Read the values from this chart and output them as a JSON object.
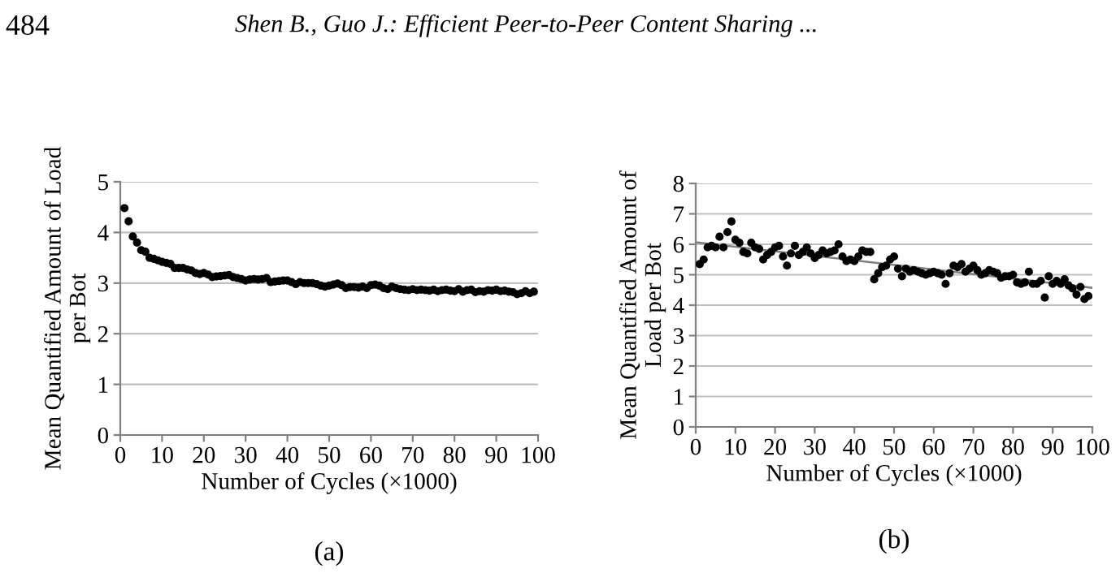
{
  "chart_data": [
    {
      "type": "scatter",
      "xlabel": "Number of Cycles (×1000)",
      "ylabel": "Mean Quantified Amount of Load\nper Bot",
      "annotations": [
        "484",
        "Shen B., Guo J.: Efficient Peer-to-Peer Content Sharing ...",
        "(a)"
      ],
      "xlim": [
        0,
        100
      ],
      "ylim": [
        0,
        5
      ],
      "xticks": [
        0,
        10,
        20,
        30,
        40,
        50,
        60,
        70,
        80,
        90,
        100
      ],
      "yticks": [
        0,
        1,
        2,
        3,
        4,
        5
      ],
      "grid": "y",
      "marker": "circle",
      "legend": false,
      "series": [
        {
          "color": "#000000",
          "x": [
            1,
            2,
            3,
            4,
            5,
            6,
            7,
            8,
            9,
            10,
            11,
            12,
            13,
            14,
            15,
            16,
            17,
            18,
            19,
            20,
            21,
            22,
            23,
            24,
            25,
            26,
            27,
            28,
            29,
            30,
            31,
            32,
            33,
            34,
            35,
            36,
            37,
            38,
            39,
            40,
            41,
            42,
            43,
            44,
            45,
            46,
            47,
            48,
            49,
            50,
            51,
            52,
            53,
            54,
            55,
            56,
            57,
            58,
            59,
            60,
            61,
            62,
            63,
            64,
            65,
            66,
            67,
            68,
            69,
            70,
            71,
            72,
            73,
            74,
            75,
            76,
            77,
            78,
            79,
            80,
            81,
            82,
            83,
            84,
            85,
            86,
            87,
            88,
            89,
            90,
            91,
            92,
            93,
            94,
            95,
            96,
            97,
            98,
            99
          ],
          "values": [
            4.48,
            4.22,
            3.92,
            3.8,
            3.65,
            3.62,
            3.5,
            3.48,
            3.45,
            3.42,
            3.4,
            3.38,
            3.3,
            3.3,
            3.3,
            3.27,
            3.25,
            3.2,
            3.18,
            3.2,
            3.17,
            3.12,
            3.13,
            3.14,
            3.15,
            3.16,
            3.12,
            3.1,
            3.08,
            3.05,
            3.07,
            3.08,
            3.07,
            3.08,
            3.1,
            3.02,
            3.03,
            3.04,
            3.05,
            3.05,
            3.02,
            2.98,
            3.02,
            3.0,
            3.0,
            3.0,
            2.98,
            2.95,
            2.93,
            2.95,
            2.97,
            2.99,
            2.96,
            2.9,
            2.92,
            2.92,
            2.91,
            2.93,
            2.9,
            2.96,
            2.97,
            2.95,
            2.9,
            2.88,
            2.93,
            2.9,
            2.88,
            2.87,
            2.86,
            2.88,
            2.86,
            2.87,
            2.86,
            2.85,
            2.87,
            2.84,
            2.86,
            2.87,
            2.85,
            2.84,
            2.88,
            2.83,
            2.86,
            2.87,
            2.82,
            2.84,
            2.83,
            2.86,
            2.85,
            2.87,
            2.84,
            2.85,
            2.83,
            2.82,
            2.78,
            2.8,
            2.84,
            2.8,
            2.83
          ]
        }
      ]
    },
    {
      "type": "scatter",
      "xlabel": "Number of Cycles (×1000)",
      "ylabel": "Mean Quantified Amount of\nLoad per Bot",
      "annotations": [
        "(b)"
      ],
      "xlim": [
        0,
        100
      ],
      "ylim": [
        0,
        8
      ],
      "xticks": [
        0,
        10,
        20,
        30,
        40,
        50,
        60,
        70,
        80,
        90,
        100
      ],
      "yticks": [
        0,
        1,
        2,
        3,
        4,
        5,
        6,
        7,
        8
      ],
      "grid": "y",
      "marker": "circle",
      "legend": false,
      "series": [
        {
          "color": "#000000",
          "x": [
            1,
            2,
            3,
            4,
            5,
            6,
            7,
            8,
            9,
            10,
            11,
            12,
            13,
            14,
            15,
            16,
            17,
            18,
            19,
            20,
            21,
            22,
            23,
            24,
            25,
            26,
            27,
            28,
            29,
            30,
            31,
            32,
            33,
            34,
            35,
            36,
            37,
            38,
            39,
            40,
            41,
            42,
            43,
            44,
            45,
            46,
            47,
            48,
            49,
            50,
            51,
            52,
            53,
            54,
            55,
            56,
            57,
            58,
            59,
            60,
            61,
            62,
            63,
            64,
            65,
            66,
            67,
            68,
            69,
            70,
            71,
            72,
            73,
            74,
            75,
            76,
            77,
            78,
            79,
            80,
            81,
            82,
            83,
            84,
            85,
            86,
            87,
            88,
            89,
            90,
            91,
            92,
            93,
            94,
            95,
            96,
            97,
            98,
            99
          ],
          "values": [
            5.35,
            5.5,
            5.9,
            5.95,
            5.9,
            6.25,
            5.9,
            6.4,
            6.75,
            6.15,
            6.05,
            5.75,
            5.7,
            6.05,
            5.9,
            5.85,
            5.5,
            5.65,
            5.75,
            5.9,
            5.95,
            5.6,
            5.3,
            5.7,
            5.95,
            5.65,
            5.75,
            5.9,
            5.7,
            5.55,
            5.65,
            5.8,
            5.7,
            5.75,
            5.8,
            6.0,
            5.6,
            5.45,
            5.5,
            5.45,
            5.6,
            5.8,
            5.75,
            5.75,
            4.85,
            5.05,
            5.25,
            5.3,
            5.5,
            5.6,
            5.2,
            4.95,
            5.2,
            5.1,
            5.15,
            5.1,
            5.05,
            5.0,
            5.05,
            5.1,
            5.05,
            5.0,
            4.7,
            5.05,
            5.3,
            5.25,
            5.35,
            5.1,
            5.2,
            5.3,
            5.15,
            5.0,
            5.05,
            5.15,
            5.1,
            5.05,
            4.9,
            4.95,
            4.95,
            5.0,
            4.75,
            4.7,
            4.75,
            5.1,
            4.7,
            4.7,
            4.8,
            4.25,
            4.95,
            4.7,
            4.8,
            4.7,
            4.85,
            4.65,
            4.55,
            4.35,
            4.6,
            4.2,
            4.3
          ]
        },
        {
          "type": "line",
          "color": "#7f7f7f",
          "marker": "none",
          "x": [
            0,
            100
          ],
          "values": [
            6.07,
            4.57
          ]
        }
      ]
    }
  ]
}
